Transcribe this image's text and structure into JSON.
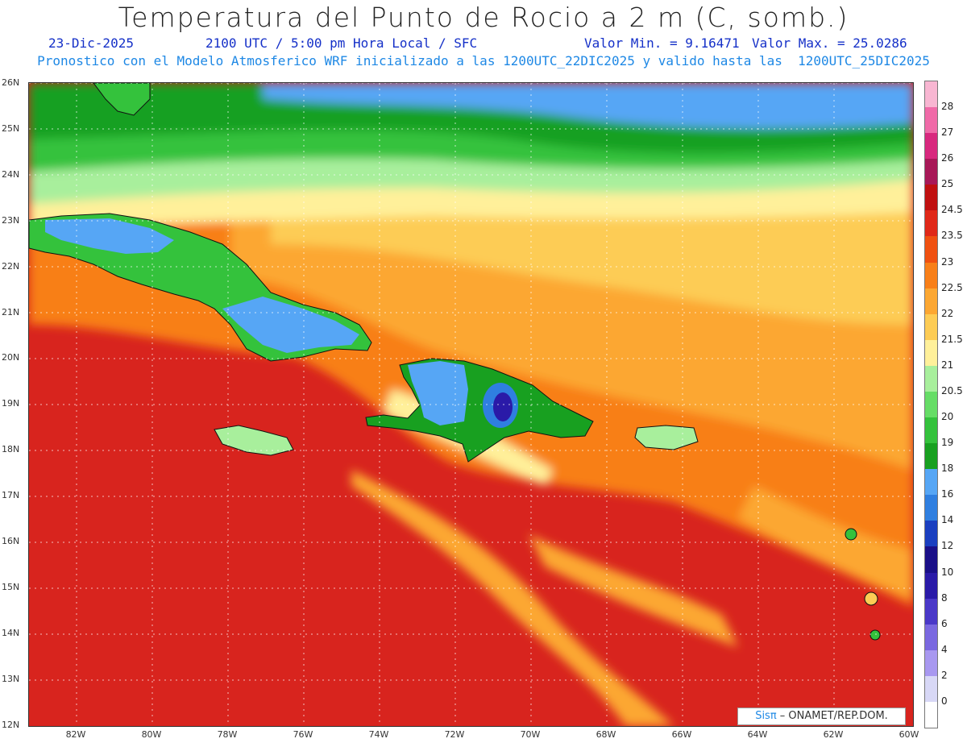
{
  "header": {
    "title": "Temperatura del Punto de Rocio a 2 m (C, somb.)",
    "date": "23-Dic-2025",
    "time": "2100 UTC / 5:00 pm Hora Local / SFC",
    "valor_min": "Valor Min. = 9.16471",
    "valor_max": "Valor Max. = 25.0286",
    "description": "Pronostico con el Modelo Atmosferico WRF inicializado a las 1200UTC_22DIC2025 y valido hasta las  1200UTC_25DIC2025"
  },
  "axes": {
    "lat_labels": [
      "26N",
      "25N",
      "24N",
      "23N",
      "22N",
      "21N",
      "20N",
      "19N",
      "18N",
      "17N",
      "16N",
      "15N",
      "14N",
      "13N",
      "12N"
    ],
    "lon_labels": [
      "82W",
      "80W",
      "78W",
      "76W",
      "74W",
      "72W",
      "70W",
      "68W",
      "66W",
      "64W",
      "62W",
      "60W"
    ]
  },
  "legend": {
    "levels": [
      "0",
      "2",
      "4",
      "6",
      "8",
      "10",
      "12",
      "14",
      "16",
      "18",
      "19",
      "20",
      "20.5",
      "21",
      "21.5",
      "22",
      "22.5",
      "23",
      "23.5",
      "24.5",
      "25",
      "26",
      "27",
      "28"
    ],
    "colors": [
      "#ffffff",
      "#d8d8f6",
      "#a898f0",
      "#7a68e0",
      "#4a38c8",
      "#2a1aa8",
      "#1a0f88",
      "#1a3fc0",
      "#2f7fe0",
      "#56a6f5",
      "#18a020",
      "#34c23c",
      "#66dd66",
      "#a8ef9c",
      "#fff09a",
      "#fdcc55",
      "#fca732",
      "#f87f18",
      "#f05010",
      "#e02818",
      "#c01010",
      "#a81858",
      "#d8287e",
      "#f06aa8",
      "#f8b6d2"
    ]
  },
  "credit": {
    "brand": "Sisπ",
    "text": " – ONAMET/REP.DOM."
  },
  "colors": {
    "sea_red": "#d8241e",
    "ocean_blue": "#56a6f5",
    "green": "#18a020"
  }
}
